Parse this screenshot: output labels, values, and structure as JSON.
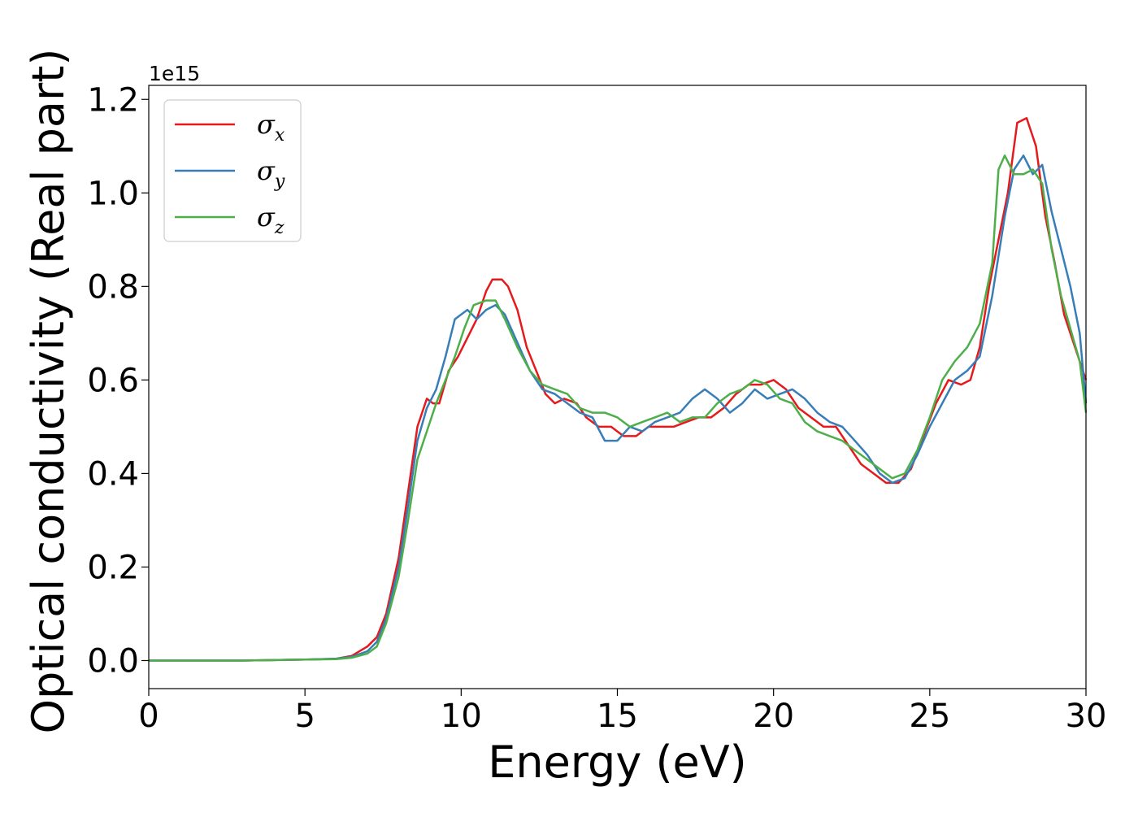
{
  "chart_data": {
    "type": "line",
    "title": "",
    "xlabel": "Energy (eV)",
    "ylabel": "Optical conductivity (Real part)",
    "y_offset_text": "1e15",
    "xlim": [
      0,
      30
    ],
    "ylim": [
      -0.06,
      1.23
    ],
    "x_ticks": [
      0,
      5,
      10,
      15,
      20,
      25,
      30
    ],
    "x_tick_labels": [
      "0",
      "5",
      "10",
      "15",
      "20",
      "25",
      "30"
    ],
    "y_ticks": [
      0.0,
      0.2,
      0.4,
      0.6,
      0.8,
      1.0,
      1.2
    ],
    "y_tick_labels": [
      "0.0",
      "0.2",
      "0.4",
      "0.6",
      "0.8",
      "1.0",
      "1.2"
    ],
    "grid": false,
    "legend_position": "top-left",
    "series": [
      {
        "name": "σ",
        "subscript": "x",
        "color": "#e41a1c",
        "points": [
          [
            0,
            0
          ],
          [
            3,
            0
          ],
          [
            5,
            0.002
          ],
          [
            6,
            0.004
          ],
          [
            6.5,
            0.01
          ],
          [
            7,
            0.03
          ],
          [
            7.3,
            0.05
          ],
          [
            7.6,
            0.1
          ],
          [
            8,
            0.22
          ],
          [
            8.3,
            0.36
          ],
          [
            8.6,
            0.5
          ],
          [
            8.9,
            0.56
          ],
          [
            9.1,
            0.55
          ],
          [
            9.3,
            0.55
          ],
          [
            9.6,
            0.62
          ],
          [
            9.9,
            0.65
          ],
          [
            10.2,
            0.69
          ],
          [
            10.5,
            0.73
          ],
          [
            10.8,
            0.79
          ],
          [
            11,
            0.815
          ],
          [
            11.3,
            0.815
          ],
          [
            11.5,
            0.8
          ],
          [
            11.8,
            0.75
          ],
          [
            12.1,
            0.67
          ],
          [
            12.4,
            0.62
          ],
          [
            12.7,
            0.57
          ],
          [
            13,
            0.55
          ],
          [
            13.3,
            0.56
          ],
          [
            13.7,
            0.55
          ],
          [
            14,
            0.52
          ],
          [
            14.4,
            0.5
          ],
          [
            14.8,
            0.5
          ],
          [
            15.2,
            0.48
          ],
          [
            15.6,
            0.48
          ],
          [
            16,
            0.5
          ],
          [
            16.4,
            0.5
          ],
          [
            16.8,
            0.5
          ],
          [
            17.2,
            0.51
          ],
          [
            17.6,
            0.52
          ],
          [
            18,
            0.52
          ],
          [
            18.4,
            0.54
          ],
          [
            18.8,
            0.57
          ],
          [
            19.2,
            0.59
          ],
          [
            19.6,
            0.59
          ],
          [
            20,
            0.6
          ],
          [
            20.4,
            0.58
          ],
          [
            20.8,
            0.54
          ],
          [
            21.2,
            0.52
          ],
          [
            21.6,
            0.5
          ],
          [
            22,
            0.5
          ],
          [
            22.4,
            0.46
          ],
          [
            22.8,
            0.42
          ],
          [
            23.2,
            0.4
          ],
          [
            23.6,
            0.38
          ],
          [
            24,
            0.38
          ],
          [
            24.4,
            0.41
          ],
          [
            24.8,
            0.48
          ],
          [
            25.2,
            0.55
          ],
          [
            25.6,
            0.6
          ],
          [
            26,
            0.59
          ],
          [
            26.3,
            0.6
          ],
          [
            26.6,
            0.67
          ],
          [
            26.9,
            0.8
          ],
          [
            27.2,
            0.9
          ],
          [
            27.5,
            1.0
          ],
          [
            27.8,
            1.15
          ],
          [
            28.1,
            1.16
          ],
          [
            28.4,
            1.1
          ],
          [
            28.7,
            0.95
          ],
          [
            29,
            0.85
          ],
          [
            29.3,
            0.74
          ],
          [
            29.6,
            0.68
          ],
          [
            30,
            0.6
          ]
        ]
      },
      {
        "name": "σ",
        "subscript": "y",
        "color": "#377eb8",
        "points": [
          [
            0,
            0
          ],
          [
            3,
            0
          ],
          [
            5,
            0.002
          ],
          [
            6,
            0.004
          ],
          [
            6.5,
            0.008
          ],
          [
            7,
            0.02
          ],
          [
            7.3,
            0.04
          ],
          [
            7.6,
            0.09
          ],
          [
            8,
            0.2
          ],
          [
            8.3,
            0.33
          ],
          [
            8.6,
            0.47
          ],
          [
            8.9,
            0.54
          ],
          [
            9.2,
            0.58
          ],
          [
            9.5,
            0.65
          ],
          [
            9.8,
            0.73
          ],
          [
            10.2,
            0.75
          ],
          [
            10.5,
            0.73
          ],
          [
            10.8,
            0.75
          ],
          [
            11.1,
            0.76
          ],
          [
            11.4,
            0.74
          ],
          [
            11.8,
            0.68
          ],
          [
            12.2,
            0.62
          ],
          [
            12.6,
            0.58
          ],
          [
            13,
            0.57
          ],
          [
            13.4,
            0.55
          ],
          [
            13.8,
            0.53
          ],
          [
            14.2,
            0.52
          ],
          [
            14.6,
            0.47
          ],
          [
            15,
            0.47
          ],
          [
            15.4,
            0.5
          ],
          [
            15.8,
            0.49
          ],
          [
            16.2,
            0.51
          ],
          [
            16.6,
            0.52
          ],
          [
            17,
            0.53
          ],
          [
            17.4,
            0.56
          ],
          [
            17.8,
            0.58
          ],
          [
            18.2,
            0.56
          ],
          [
            18.6,
            0.53
          ],
          [
            19,
            0.55
          ],
          [
            19.4,
            0.58
          ],
          [
            19.8,
            0.56
          ],
          [
            20.2,
            0.57
          ],
          [
            20.6,
            0.58
          ],
          [
            21,
            0.56
          ],
          [
            21.4,
            0.53
          ],
          [
            21.8,
            0.51
          ],
          [
            22.2,
            0.5
          ],
          [
            22.6,
            0.47
          ],
          [
            23,
            0.44
          ],
          [
            23.4,
            0.4
          ],
          [
            23.8,
            0.38
          ],
          [
            24.2,
            0.39
          ],
          [
            24.6,
            0.44
          ],
          [
            25,
            0.5
          ],
          [
            25.4,
            0.55
          ],
          [
            25.8,
            0.6
          ],
          [
            26.2,
            0.62
          ],
          [
            26.6,
            0.65
          ],
          [
            27,
            0.78
          ],
          [
            27.4,
            0.95
          ],
          [
            27.7,
            1.05
          ],
          [
            28,
            1.08
          ],
          [
            28.3,
            1.04
          ],
          [
            28.6,
            1.06
          ],
          [
            28.9,
            0.96
          ],
          [
            29.2,
            0.88
          ],
          [
            29.5,
            0.8
          ],
          [
            29.8,
            0.7
          ],
          [
            30,
            0.55
          ]
        ]
      },
      {
        "name": "σ",
        "subscript": "z",
        "color": "#4daf4a",
        "points": [
          [
            0,
            0
          ],
          [
            3,
            0
          ],
          [
            5,
            0.002
          ],
          [
            6,
            0.003
          ],
          [
            6.5,
            0.006
          ],
          [
            7,
            0.015
          ],
          [
            7.3,
            0.03
          ],
          [
            7.6,
            0.08
          ],
          [
            8,
            0.18
          ],
          [
            8.3,
            0.3
          ],
          [
            8.6,
            0.43
          ],
          [
            8.9,
            0.49
          ],
          [
            9.2,
            0.55
          ],
          [
            9.5,
            0.6
          ],
          [
            9.8,
            0.65
          ],
          [
            10.1,
            0.71
          ],
          [
            10.4,
            0.76
          ],
          [
            10.8,
            0.77
          ],
          [
            11.1,
            0.77
          ],
          [
            11.4,
            0.73
          ],
          [
            11.8,
            0.67
          ],
          [
            12.2,
            0.62
          ],
          [
            12.6,
            0.59
          ],
          [
            13,
            0.58
          ],
          [
            13.4,
            0.57
          ],
          [
            13.8,
            0.54
          ],
          [
            14.2,
            0.53
          ],
          [
            14.6,
            0.53
          ],
          [
            15,
            0.52
          ],
          [
            15.4,
            0.5
          ],
          [
            15.8,
            0.51
          ],
          [
            16.2,
            0.52
          ],
          [
            16.6,
            0.53
          ],
          [
            17,
            0.51
          ],
          [
            17.4,
            0.52
          ],
          [
            17.8,
            0.52
          ],
          [
            18.2,
            0.55
          ],
          [
            18.6,
            0.57
          ],
          [
            19,
            0.58
          ],
          [
            19.4,
            0.6
          ],
          [
            19.8,
            0.59
          ],
          [
            20.2,
            0.56
          ],
          [
            20.6,
            0.55
          ],
          [
            21,
            0.51
          ],
          [
            21.4,
            0.49
          ],
          [
            21.8,
            0.48
          ],
          [
            22.2,
            0.47
          ],
          [
            22.6,
            0.45
          ],
          [
            23,
            0.43
          ],
          [
            23.4,
            0.41
          ],
          [
            23.8,
            0.39
          ],
          [
            24.2,
            0.4
          ],
          [
            24.6,
            0.45
          ],
          [
            25,
            0.52
          ],
          [
            25.4,
            0.6
          ],
          [
            25.8,
            0.64
          ],
          [
            26.2,
            0.67
          ],
          [
            26.6,
            0.72
          ],
          [
            27,
            0.85
          ],
          [
            27.2,
            1.05
          ],
          [
            27.4,
            1.08
          ],
          [
            27.7,
            1.04
          ],
          [
            28,
            1.04
          ],
          [
            28.3,
            1.05
          ],
          [
            28.6,
            1.02
          ],
          [
            28.9,
            0.88
          ],
          [
            29.2,
            0.78
          ],
          [
            29.5,
            0.71
          ],
          [
            29.8,
            0.64
          ],
          [
            30,
            0.53
          ]
        ]
      }
    ]
  }
}
